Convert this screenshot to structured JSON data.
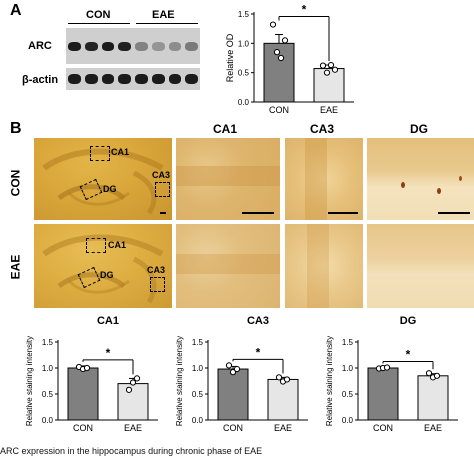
{
  "panel_a": {
    "letter": "A",
    "blot": {
      "group_labels": [
        "CON",
        "EAE"
      ],
      "row_labels": [
        "ARC",
        "β-actin"
      ],
      "arc_band_darkness": [
        0.95,
        0.9,
        0.95,
        0.92,
        0.4,
        0.3,
        0.35,
        0.45
      ],
      "actin_band_darkness": [
        0.95,
        0.95,
        0.95,
        0.95,
        0.95,
        0.95,
        0.95,
        0.95
      ]
    },
    "chart_data": {
      "type": "bar",
      "categories": [
        "CON",
        "EAE"
      ],
      "values": [
        1.0,
        0.57
      ],
      "errors": [
        0.15,
        0.06
      ],
      "points": [
        [
          1.32,
          0.85,
          0.75,
          1.05
        ],
        [
          0.62,
          0.5,
          0.63,
          0.55
        ]
      ],
      "ylabel": "Relative OD",
      "ylim": [
        0,
        1.5
      ],
      "yticks": [
        "0.0",
        "0.5",
        "1.0",
        "1.5"
      ],
      "significance": "*",
      "bar_colors": [
        "#808080",
        "#e6e6e6"
      ]
    }
  },
  "panel_b": {
    "letter": "B",
    "column_labels": [
      "CA1",
      "CA3",
      "DG"
    ],
    "row_labels": [
      "CON",
      "EAE"
    ],
    "roi_labels": [
      "CA1",
      "DG",
      "CA3"
    ],
    "charts": [
      {
        "type": "bar",
        "title": "CA1",
        "categories": [
          "CON",
          "EAE"
        ],
        "values": [
          1.0,
          0.7
        ],
        "errors": [
          0.04,
          0.1
        ],
        "points": [
          [
            1.02,
            0.98,
            1.0
          ],
          [
            0.58,
            0.72,
            0.8
          ]
        ],
        "ylabel": "Relative staining intensity",
        "ylim": [
          0,
          1.5
        ],
        "yticks": [
          "0.0",
          "0.5",
          "1.0",
          "1.5"
        ],
        "significance": "*"
      },
      {
        "type": "bar",
        "title": "CA3",
        "categories": [
          "CON",
          "EAE"
        ],
        "values": [
          0.98,
          0.78
        ],
        "errors": [
          0.05,
          0.04
        ],
        "points": [
          [
            1.05,
            0.92,
            0.98
          ],
          [
            0.82,
            0.74,
            0.78
          ]
        ],
        "ylabel": "Relative staining intensity",
        "ylim": [
          0,
          1.5
        ],
        "yticks": [
          "0.0",
          "0.5",
          "1.0",
          "1.5"
        ],
        "significance": "*"
      },
      {
        "type": "bar",
        "title": "DG",
        "categories": [
          "CON",
          "EAE"
        ],
        "values": [
          1.0,
          0.85
        ],
        "errors": [
          0.01,
          0.04
        ],
        "points": [
          [
            0.99,
            1.0,
            1.01
          ],
          [
            0.9,
            0.82,
            0.85
          ]
        ],
        "ylabel": "Relative staining intensity",
        "ylim": [
          0,
          1.5
        ],
        "yticks": [
          "0.0",
          "0.5",
          "1.0",
          "1.5"
        ],
        "significance": "*"
      }
    ]
  },
  "caption": "ARC expression in the hippocampus during chronic phase of EAE"
}
